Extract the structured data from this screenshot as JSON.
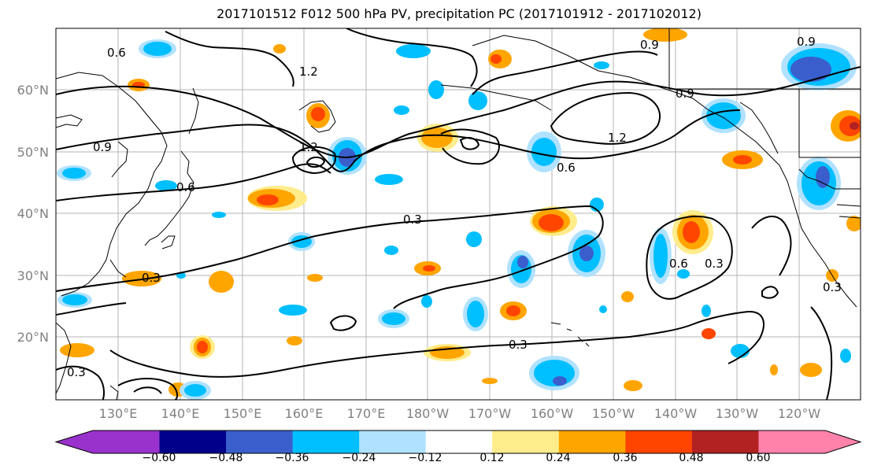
{
  "title": "2017101512 F012 500 hPa PV, precipitation PC (2017101912 - 2017102012)",
  "map": {
    "lat_labels": [
      "60°N",
      "50°N",
      "40°N",
      "30°N",
      "20°N"
    ],
    "lon_labels": [
      "130°E",
      "140°E",
      "150°E",
      "160°E",
      "170°E",
      "180°W",
      "170°W",
      "160°W",
      "150°W",
      "140°W",
      "130°W",
      "120°W"
    ],
    "contour_labels": [
      "0.6",
      "0.9",
      "1.2",
      "0.3",
      "0.6",
      "0.9",
      "1.2",
      "0.6",
      "0.9",
      "1.2",
      "0.3",
      "0.6",
      "0.3",
      "0.3",
      "0.9",
      "0.3",
      "0.3"
    ]
  },
  "colorbar": {
    "ticks": [
      "−0.60",
      "−0.48",
      "−0.36",
      "−0.24",
      "−0.12",
      "0.12",
      "0.24",
      "0.36",
      "0.48",
      "0.60"
    ],
    "colors": [
      "#9932cc",
      "#00008b",
      "#3a5fcd",
      "#00bfff",
      "#b0e2ff",
      "#ffffff",
      "#ffec8b",
      "#ffa500",
      "#ff4500",
      "#b22222",
      "#ff82ab"
    ],
    "extend": "both"
  },
  "legend_colors": {
    "neg_light": "#b0e2ff",
    "neg_mid": "#00bfff",
    "neg_dark": "#3a5fcd",
    "pos_light": "#ffec8b",
    "pos_mid": "#ffa500",
    "pos_dark": "#ff4500",
    "pos_darker": "#b22222"
  }
}
